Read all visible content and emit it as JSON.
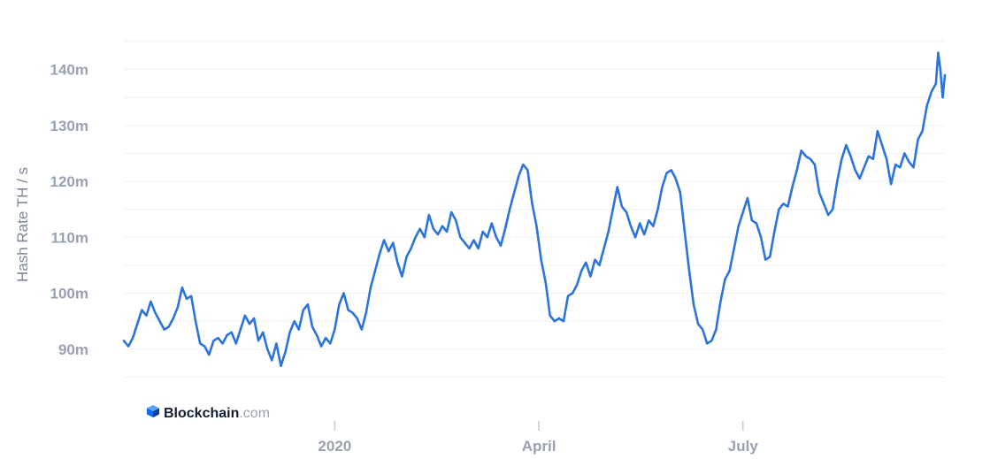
{
  "brand": {
    "name": "Blockchain",
    "tld": ".com",
    "icon": "blockchain-cube-logo",
    "color": "#0c6cf2"
  },
  "colors": {
    "line": "#2b74da",
    "grid": "#eef0f3",
    "tick_text": "#98a1b2"
  },
  "chart_data": {
    "type": "line",
    "title": "",
    "xlabel": "",
    "ylabel": "Hash Rate TH / s",
    "grid": true,
    "legend": "none",
    "ylim": [
      80,
      145
    ],
    "y_ticks": [
      {
        "value": 90,
        "label": "90m"
      },
      {
        "value": 100,
        "label": "100m"
      },
      {
        "value": 110,
        "label": "110m"
      },
      {
        "value": 120,
        "label": "120m"
      },
      {
        "value": 130,
        "label": "130m"
      },
      {
        "value": 140,
        "label": "140m"
      }
    ],
    "xlim": [
      "2019-09-29",
      "2020-09-29"
    ],
    "x_ticks": [
      {
        "value": "2020-01-01",
        "label": "2020"
      },
      {
        "value": "2020-04-01",
        "label": "April"
      },
      {
        "value": "2020-07-01",
        "label": "July"
      }
    ],
    "series": [
      {
        "values": [
          [
            "2019-09-29",
            91.5
          ],
          [
            "2019-10-01",
            90.5
          ],
          [
            "2019-10-03",
            92.0
          ],
          [
            "2019-10-05",
            94.5
          ],
          [
            "2019-10-07",
            97.0
          ],
          [
            "2019-10-09",
            96.0
          ],
          [
            "2019-10-11",
            98.5
          ],
          [
            "2019-10-13",
            96.5
          ],
          [
            "2019-10-15",
            95.0
          ],
          [
            "2019-10-17",
            93.5
          ],
          [
            "2019-10-19",
            94.0
          ],
          [
            "2019-10-21",
            95.5
          ],
          [
            "2019-10-23",
            97.5
          ],
          [
            "2019-10-25",
            101.0
          ],
          [
            "2019-10-27",
            99.0
          ],
          [
            "2019-10-29",
            99.5
          ],
          [
            "2019-10-31",
            95.0
          ],
          [
            "2019-11-02",
            91.0
          ],
          [
            "2019-11-04",
            90.5
          ],
          [
            "2019-11-06",
            89.0
          ],
          [
            "2019-11-08",
            91.5
          ],
          [
            "2019-11-10",
            92.0
          ],
          [
            "2019-11-12",
            91.0
          ],
          [
            "2019-11-14",
            92.5
          ],
          [
            "2019-11-16",
            93.0
          ],
          [
            "2019-11-18",
            91.0
          ],
          [
            "2019-11-20",
            93.5
          ],
          [
            "2019-11-22",
            96.0
          ],
          [
            "2019-11-24",
            94.5
          ],
          [
            "2019-11-26",
            95.5
          ],
          [
            "2019-11-28",
            91.5
          ],
          [
            "2019-11-30",
            93.0
          ],
          [
            "2019-12-02",
            90.0
          ],
          [
            "2019-12-04",
            88.0
          ],
          [
            "2019-12-06",
            91.0
          ],
          [
            "2019-12-08",
            87.0
          ],
          [
            "2019-12-10",
            89.5
          ],
          [
            "2019-12-12",
            93.0
          ],
          [
            "2019-12-14",
            95.0
          ],
          [
            "2019-12-16",
            93.5
          ],
          [
            "2019-12-18",
            97.0
          ],
          [
            "2019-12-20",
            98.0
          ],
          [
            "2019-12-22",
            94.0
          ],
          [
            "2019-12-24",
            92.5
          ],
          [
            "2019-12-26",
            90.5
          ],
          [
            "2019-12-28",
            92.0
          ],
          [
            "2019-12-30",
            91.0
          ],
          [
            "2020-01-01",
            93.5
          ],
          [
            "2020-01-03",
            98.0
          ],
          [
            "2020-01-05",
            100.0
          ],
          [
            "2020-01-07",
            97.0
          ],
          [
            "2020-01-09",
            96.5
          ],
          [
            "2020-01-11",
            95.5
          ],
          [
            "2020-01-13",
            93.5
          ],
          [
            "2020-01-15",
            96.5
          ],
          [
            "2020-01-17",
            101.0
          ],
          [
            "2020-01-19",
            104.0
          ],
          [
            "2020-01-21",
            107.0
          ],
          [
            "2020-01-23",
            109.5
          ],
          [
            "2020-01-25",
            107.5
          ],
          [
            "2020-01-27",
            109.0
          ],
          [
            "2020-01-29",
            105.5
          ],
          [
            "2020-01-31",
            103.0
          ],
          [
            "2020-02-02",
            106.5
          ],
          [
            "2020-02-04",
            108.0
          ],
          [
            "2020-02-06",
            110.0
          ],
          [
            "2020-02-08",
            111.5
          ],
          [
            "2020-02-10",
            110.0
          ],
          [
            "2020-02-12",
            114.0
          ],
          [
            "2020-02-14",
            111.5
          ],
          [
            "2020-02-16",
            110.5
          ],
          [
            "2020-02-18",
            112.0
          ],
          [
            "2020-02-20",
            111.0
          ],
          [
            "2020-02-22",
            114.5
          ],
          [
            "2020-02-24",
            113.0
          ],
          [
            "2020-02-26",
            110.0
          ],
          [
            "2020-02-28",
            109.0
          ],
          [
            "2020-03-01",
            108.0
          ],
          [
            "2020-03-03",
            109.5
          ],
          [
            "2020-03-05",
            108.0
          ],
          [
            "2020-03-07",
            111.0
          ],
          [
            "2020-03-09",
            110.0
          ],
          [
            "2020-03-11",
            112.5
          ],
          [
            "2020-03-13",
            110.0
          ],
          [
            "2020-03-15",
            108.5
          ],
          [
            "2020-03-17",
            111.5
          ],
          [
            "2020-03-19",
            115.0
          ],
          [
            "2020-03-21",
            118.0
          ],
          [
            "2020-03-23",
            121.0
          ],
          [
            "2020-03-25",
            123.0
          ],
          [
            "2020-03-27",
            122.0
          ],
          [
            "2020-03-29",
            116.0
          ],
          [
            "2020-03-31",
            112.0
          ],
          [
            "2020-04-02",
            106.0
          ],
          [
            "2020-04-04",
            102.0
          ],
          [
            "2020-04-06",
            96.0
          ],
          [
            "2020-04-08",
            95.0
          ],
          [
            "2020-04-10",
            95.5
          ],
          [
            "2020-04-12",
            95.0
          ],
          [
            "2020-04-14",
            99.5
          ],
          [
            "2020-04-16",
            100.0
          ],
          [
            "2020-04-18",
            101.5
          ],
          [
            "2020-04-20",
            104.0
          ],
          [
            "2020-04-22",
            105.5
          ],
          [
            "2020-04-24",
            103.0
          ],
          [
            "2020-04-26",
            106.0
          ],
          [
            "2020-04-28",
            105.0
          ],
          [
            "2020-04-30",
            108.0
          ],
          [
            "2020-05-02",
            111.0
          ],
          [
            "2020-05-04",
            115.0
          ],
          [
            "2020-05-06",
            119.0
          ],
          [
            "2020-05-08",
            115.5
          ],
          [
            "2020-05-10",
            114.5
          ],
          [
            "2020-05-12",
            112.0
          ],
          [
            "2020-05-14",
            110.0
          ],
          [
            "2020-05-16",
            112.5
          ],
          [
            "2020-05-18",
            110.5
          ],
          [
            "2020-05-20",
            113.0
          ],
          [
            "2020-05-22",
            112.0
          ],
          [
            "2020-05-24",
            115.0
          ],
          [
            "2020-05-26",
            119.0
          ],
          [
            "2020-05-28",
            121.5
          ],
          [
            "2020-05-30",
            122.0
          ],
          [
            "2020-06-01",
            120.5
          ],
          [
            "2020-06-03",
            118.0
          ],
          [
            "2020-06-05",
            111.0
          ],
          [
            "2020-06-07",
            104.0
          ],
          [
            "2020-06-09",
            98.0
          ],
          [
            "2020-06-11",
            94.5
          ],
          [
            "2020-06-13",
            93.5
          ],
          [
            "2020-06-15",
            91.0
          ],
          [
            "2020-06-17",
            91.5
          ],
          [
            "2020-06-19",
            93.5
          ],
          [
            "2020-06-21",
            98.5
          ],
          [
            "2020-06-23",
            102.5
          ],
          [
            "2020-06-25",
            104.0
          ],
          [
            "2020-06-27",
            108.0
          ],
          [
            "2020-06-29",
            112.0
          ],
          [
            "2020-07-01",
            114.5
          ],
          [
            "2020-07-03",
            117.0
          ],
          [
            "2020-07-05",
            113.0
          ],
          [
            "2020-07-07",
            112.5
          ],
          [
            "2020-07-09",
            110.0
          ],
          [
            "2020-07-11",
            106.0
          ],
          [
            "2020-07-13",
            106.5
          ],
          [
            "2020-07-15",
            111.0
          ],
          [
            "2020-07-17",
            115.0
          ],
          [
            "2020-07-19",
            116.0
          ],
          [
            "2020-07-21",
            115.5
          ],
          [
            "2020-07-23",
            119.0
          ],
          [
            "2020-07-25",
            122.0
          ],
          [
            "2020-07-27",
            125.5
          ],
          [
            "2020-07-29",
            124.5
          ],
          [
            "2020-07-31",
            124.0
          ],
          [
            "2020-08-02",
            123.0
          ],
          [
            "2020-08-04",
            118.0
          ],
          [
            "2020-08-06",
            116.0
          ],
          [
            "2020-08-08",
            114.0
          ],
          [
            "2020-08-10",
            115.0
          ],
          [
            "2020-08-12",
            120.0
          ],
          [
            "2020-08-14",
            124.0
          ],
          [
            "2020-08-16",
            126.5
          ],
          [
            "2020-08-18",
            124.5
          ],
          [
            "2020-08-20",
            122.0
          ],
          [
            "2020-08-22",
            120.5
          ],
          [
            "2020-08-24",
            122.5
          ],
          [
            "2020-08-26",
            124.5
          ],
          [
            "2020-08-28",
            124.0
          ],
          [
            "2020-08-30",
            129.0
          ],
          [
            "2020-09-01",
            126.5
          ],
          [
            "2020-09-03",
            124.0
          ],
          [
            "2020-09-05",
            119.5
          ],
          [
            "2020-09-07",
            123.0
          ],
          [
            "2020-09-09",
            122.5
          ],
          [
            "2020-09-11",
            125.0
          ],
          [
            "2020-09-13",
            123.5
          ],
          [
            "2020-09-15",
            122.5
          ],
          [
            "2020-09-17",
            127.5
          ],
          [
            "2020-09-19",
            129.0
          ],
          [
            "2020-09-21",
            133.5
          ],
          [
            "2020-09-23",
            136.0
          ],
          [
            "2020-09-25",
            137.5
          ],
          [
            "2020-09-26",
            143.0
          ],
          [
            "2020-09-27",
            140.0
          ],
          [
            "2020-09-28",
            135.0
          ],
          [
            "2020-09-29",
            139.0
          ]
        ]
      }
    ]
  }
}
